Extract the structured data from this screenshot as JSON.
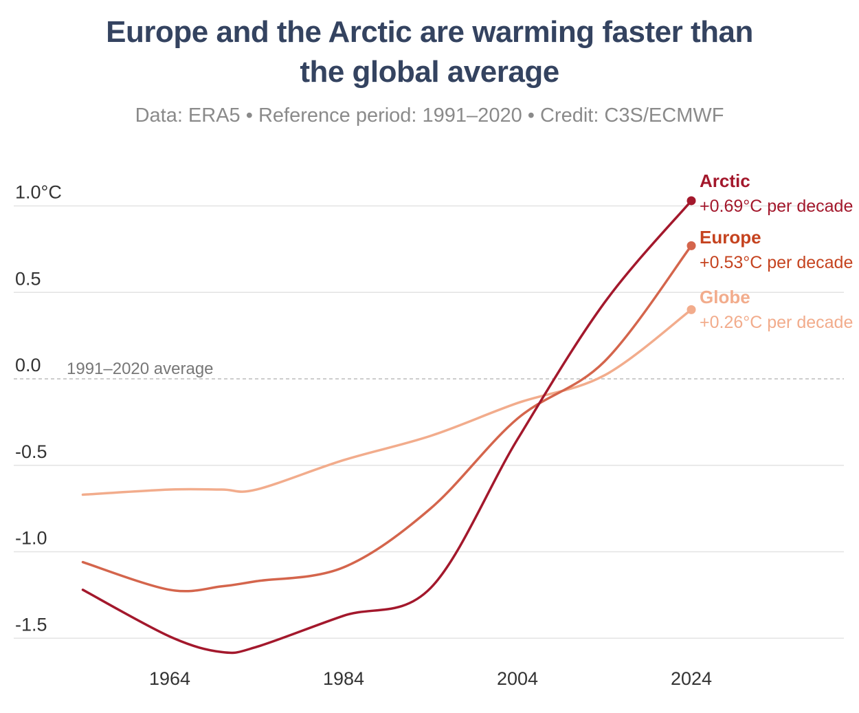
{
  "chart_data": {
    "type": "line",
    "title_line1": "Europe and the Arctic are warming faster than",
    "title_line2": "the global average",
    "subtitle": "Data: ERA5 • Reference period: 1991–2020 • Credit: C3S/ECMWF",
    "x": [
      1954,
      1964,
      1970,
      1974,
      1984,
      1994,
      2004,
      2014,
      2024
    ],
    "xlim": [
      1947,
      2042
    ],
    "ylim": [
      -1.6,
      1.2
    ],
    "x_ticks": [
      1964,
      1984,
      2004,
      2024
    ],
    "x_tick_labels": [
      "1964",
      "1984",
      "2004",
      "2024"
    ],
    "y_ticks": [
      1.0,
      0.5,
      0.0,
      -0.5,
      -1.0,
      -1.5
    ],
    "y_tick_labels": [
      "1.0°C",
      "0.5",
      "0.0",
      "-0.5",
      "-1.0",
      "-1.5"
    ],
    "reference_label": "1991–2020 average",
    "grid": true,
    "series": [
      {
        "name": "Arctic",
        "trend": "+0.69°C per decade",
        "color": "#a3182c",
        "values": [
          -1.22,
          -1.49,
          -1.58,
          -1.55,
          -1.37,
          -1.21,
          -0.35,
          0.44,
          1.03
        ]
      },
      {
        "name": "Europe",
        "trend": "+0.53°C per decade",
        "color": "#d4654c",
        "values": [
          -1.06,
          -1.22,
          -1.2,
          -1.17,
          -1.09,
          -0.75,
          -0.23,
          0.1,
          0.77
        ]
      },
      {
        "name": "Globe",
        "trend": "+0.26°C per decade",
        "color": "#f2ac8c",
        "values": [
          -0.67,
          -0.64,
          -0.64,
          -0.64,
          -0.47,
          -0.33,
          -0.14,
          0.02,
          0.4
        ]
      }
    ],
    "label_colors": {
      "Arctic": "#a3182c",
      "Europe": "#c5431f",
      "Globe": "#f2ac8c"
    }
  }
}
